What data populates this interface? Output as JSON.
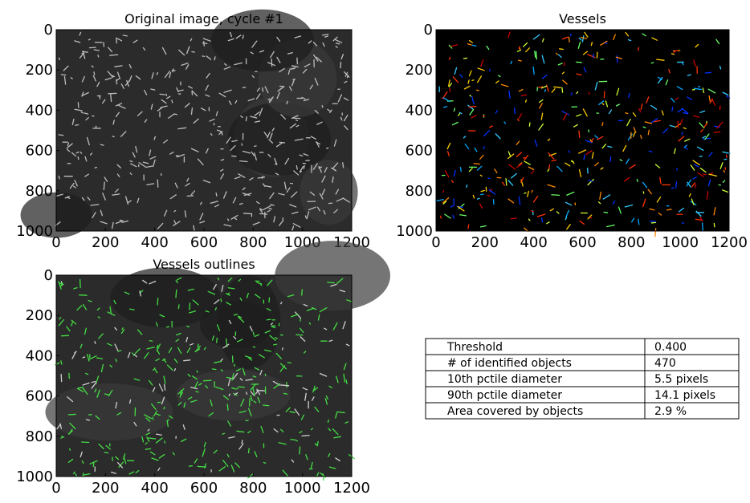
{
  "panels": [
    {
      "title": "Original image, cycle #1",
      "xlim": [
        0,
        1200
      ],
      "ylim": [
        0,
        1000
      ],
      "xticks": [
        0,
        200,
        400,
        600,
        800,
        1000,
        1200
      ],
      "yticks": [
        0,
        200,
        400,
        600,
        800,
        1000
      ]
    },
    {
      "title": "Vessels",
      "xlim": [
        0,
        1200
      ],
      "ylim": [
        0,
        1000
      ],
      "xticks": [
        0,
        200,
        400,
        600,
        800,
        1000,
        1200
      ],
      "yticks": [
        0,
        200,
        400,
        600,
        800,
        1000
      ]
    },
    {
      "title": "Vessels outlines",
      "xlim": [
        0,
        1200
      ],
      "ylim": [
        0,
        1000
      ],
      "xticks": [
        0,
        200,
        400,
        600,
        800,
        1000,
        1200
      ],
      "yticks": [
        0,
        200,
        400,
        600,
        800,
        1000
      ]
    }
  ],
  "table": {
    "rows": [
      [
        "Threshold",
        "0.400"
      ],
      [
        "# of identified objects",
        "470"
      ],
      [
        "10th pctile diameter",
        "5.5 pixels"
      ],
      [
        "90th pctile diameter",
        "14.1 pixels"
      ],
      [
        "Area covered by objects",
        "2.9 %"
      ]
    ]
  }
}
